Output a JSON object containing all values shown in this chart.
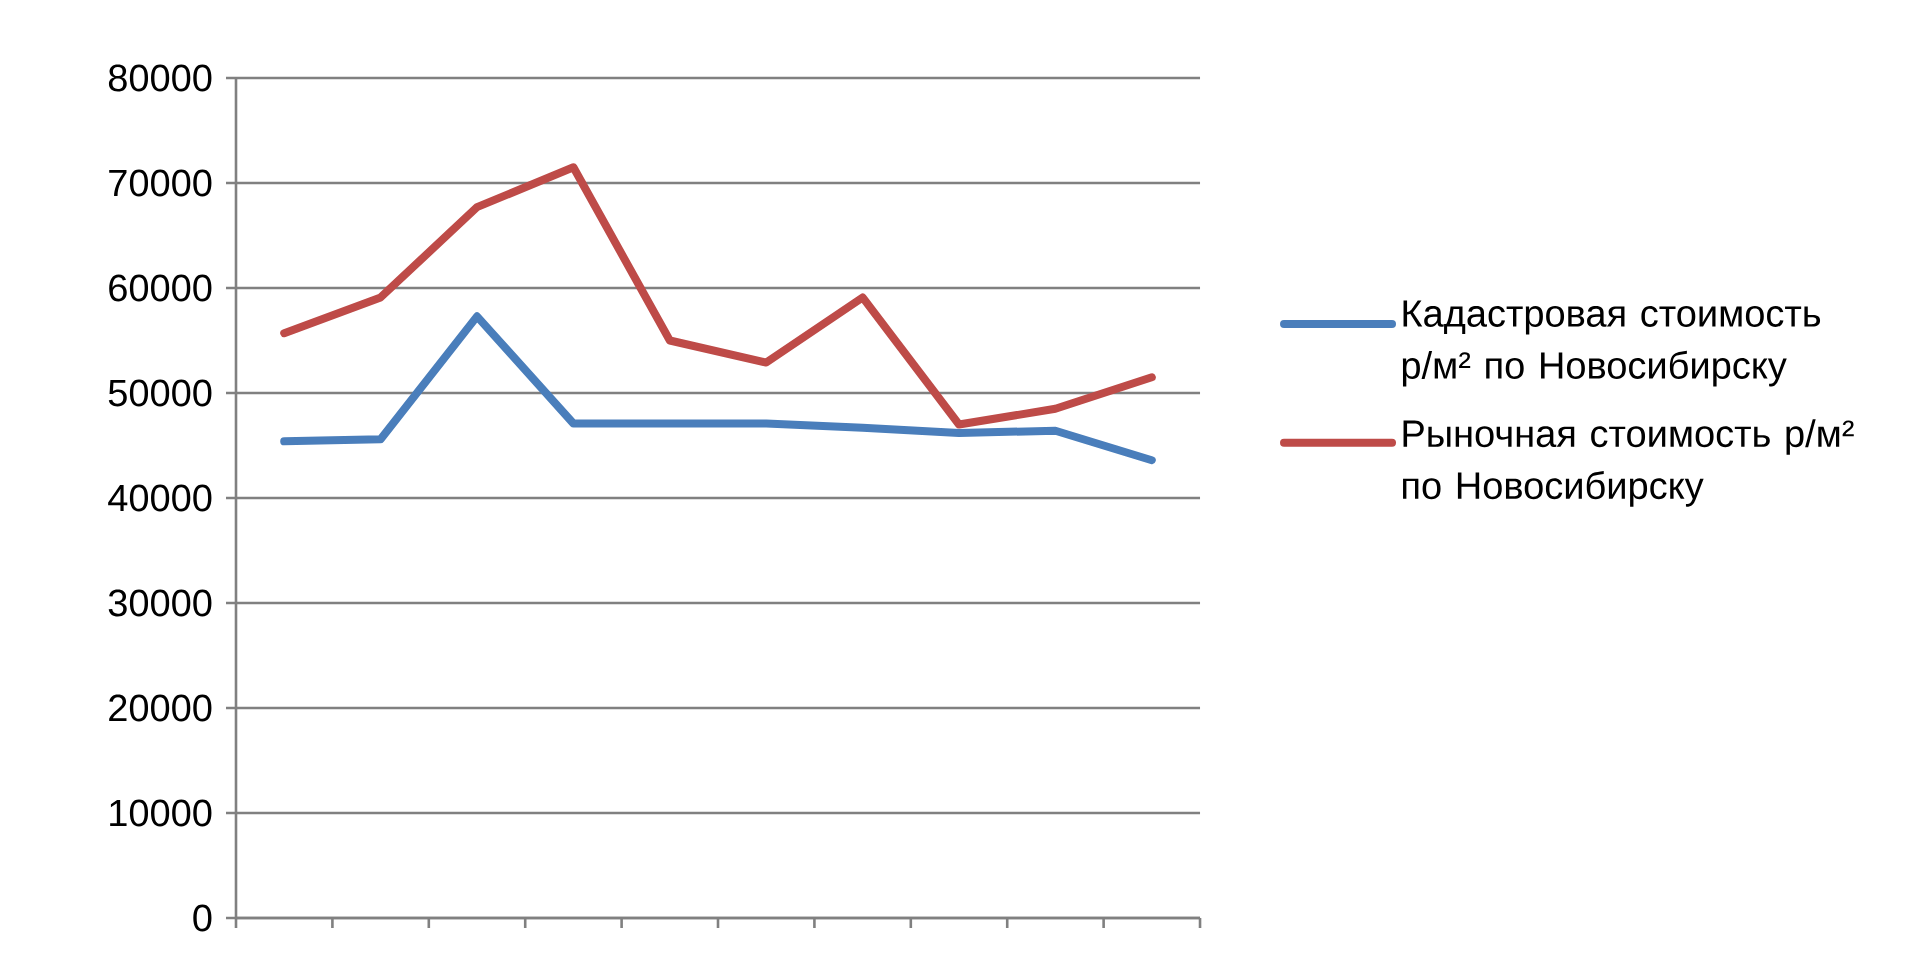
{
  "chart_data": {
    "type": "line",
    "categories": [
      null,
      null,
      null,
      null,
      null,
      null,
      null,
      null,
      null,
      null
    ],
    "series": [
      {
        "name": "Кадастровая стоимость р/м² по Новосибирску",
        "color": "#4a7ebb",
        "values": [
          45400,
          45600,
          57300,
          47100,
          47100,
          47100,
          46700,
          46200,
          46400,
          43600
        ]
      },
      {
        "name": "Рыночная стоимость р/м² по Новосибирску",
        "color": "#be4b48",
        "values": [
          55700,
          59100,
          67700,
          71500,
          55000,
          52900,
          59100,
          47000,
          48500,
          51500
        ]
      }
    ],
    "ylim": [
      0,
      80000
    ],
    "yticks": [
      0,
      10000,
      20000,
      30000,
      40000,
      50000,
      60000,
      70000,
      80000
    ],
    "grid": "y",
    "legend": "right",
    "marker": "none",
    "line_style": "solid"
  }
}
